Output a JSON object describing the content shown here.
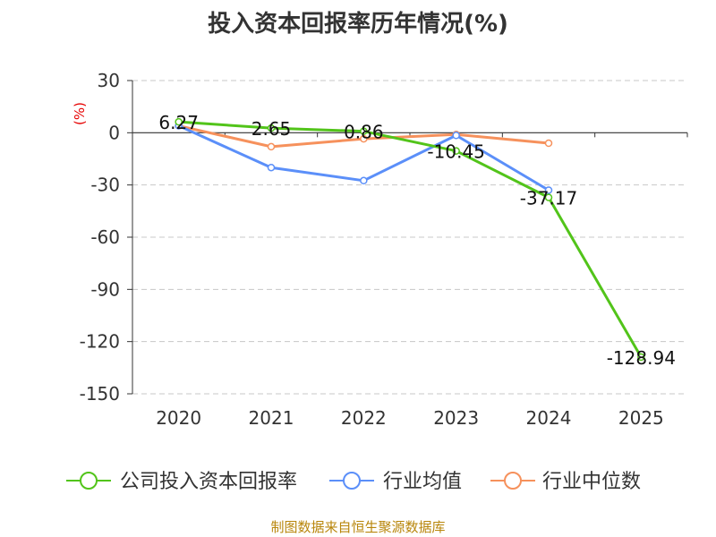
{
  "title": "投入资本回报率历年情况(%)",
  "source": "制图数据来自恒生聚源数据库",
  "colors": {
    "axis": "#333333",
    "grid": "#c8c8c8",
    "unit": "#e60000",
    "tick_text": "#333333",
    "company": "#52c41a",
    "industry_avg": "#5b8ff9",
    "industry_median": "#f6915c"
  },
  "chart_data": {
    "type": "line",
    "title": "投入资本回报率历年情况(%)",
    "unit_label": "(%)",
    "categories": [
      "2020",
      "2021",
      "2022",
      "2023",
      "2024",
      "2025"
    ],
    "yticks": [
      30,
      0,
      -30,
      -60,
      -90,
      -120,
      -150
    ],
    "ylim": [
      -150,
      30
    ],
    "grid": true,
    "legend_position": "bottom",
    "series": [
      {
        "name": "公司投入资本回报率",
        "color": "#52c41a",
        "values": [
          6.27,
          2.65,
          0.86,
          -10.45,
          -37.17,
          -128.94
        ],
        "labels": [
          "6.27",
          "2.65",
          "0.86",
          "-10.45",
          "-37.17",
          "-128.94"
        ]
      },
      {
        "name": "行业均值",
        "color": "#5b8ff9",
        "values": [
          4,
          -20,
          -27.5,
          -1.5,
          -33,
          null
        ]
      },
      {
        "name": "行业中位数",
        "color": "#f6915c",
        "values": [
          4,
          -8,
          -3.5,
          -1,
          -6,
          null
        ]
      }
    ]
  }
}
